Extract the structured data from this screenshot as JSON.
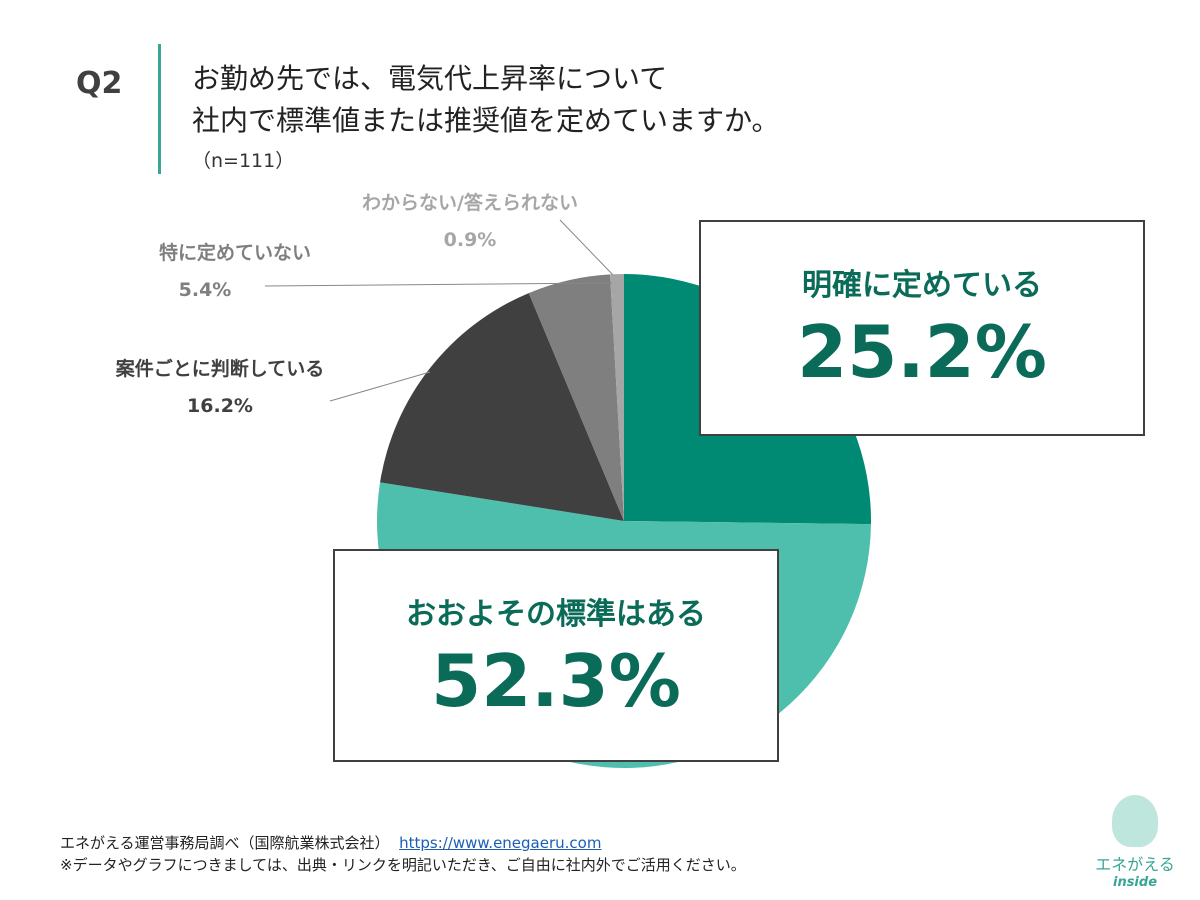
{
  "header": {
    "question": "Q2",
    "title_line1": "お勤め先では、電気代上昇率について",
    "title_line2": "社内で標準値または推奨値を定めていますか。",
    "n": "（n=111）"
  },
  "chart_data": {
    "type": "pie",
    "start": "12 o'clock",
    "direction": "clockwise",
    "slices": [
      {
        "label": "明確に定めている",
        "value": 25.2,
        "display": "25.2%",
        "color": "#008a73"
      },
      {
        "label": "おおよその標準はある",
        "value": 52.3,
        "display": "52.3%",
        "color": "#4fbfad"
      },
      {
        "label": "案件ごとに判断している",
        "value": 16.2,
        "display": "16.2%",
        "color": "#404040"
      },
      {
        "label": "特に定めていない",
        "value": 5.4,
        "display": "5.4%",
        "color": "#7f7f7f"
      },
      {
        "label": "わからない/答えられない",
        "value": 0.9,
        "display": "0.9%",
        "color": "#a6a6a6"
      }
    ]
  },
  "footer": {
    "source": "エネがえる運営事務局調べ（国際航業株式会社）",
    "url": "https://www.enegaeru.com",
    "note": "※データやグラフにつきましては、出典・リンクを明記いただき、ご自由に社内外でご活用ください。"
  },
  "logo": {
    "name": "エネがえる",
    "sub": "inside"
  }
}
